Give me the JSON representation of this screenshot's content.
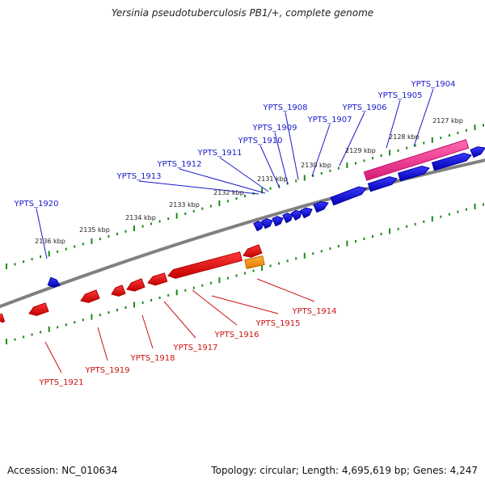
{
  "title": "Yersinia pseudotuberculosis PB1/+, complete genome",
  "footer": {
    "accession": "Accession: NC_010634",
    "summary": "Topology: circular; Length: 4,695,619 bp; Genes: 4,247"
  },
  "colors": {
    "forward_gene": "#0000dd",
    "reverse_gene": "#ee0000",
    "highlight_forward": "#ee2a8a",
    "highlight_reverse": "#f5900a",
    "backbone": "#888888",
    "ticks": "#1a8a1a",
    "forward_label": "#1a1acc",
    "reverse_label": "#cc1111"
  },
  "tick_labels": [
    "2127 kbp",
    "2128 kbp",
    "2129 kbp",
    "2130 kbp",
    "2131 kbp",
    "2132 kbp",
    "2133 kbp",
    "2134 kbp",
    "2135 kbp",
    "2136 kbp"
  ],
  "forward_genes": [
    "YPTS_1904",
    "YPTS_1905",
    "YPTS_1906",
    "YPTS_1907",
    "YPTS_1908",
    "YPTS_1909",
    "YPTS_1910",
    "YPTS_1911",
    "YPTS_1912",
    "YPTS_1913",
    "YPTS_1920"
  ],
  "reverse_genes": [
    "YPTS_1914",
    "YPTS_1915",
    "YPTS_1916",
    "YPTS_1917",
    "YPTS_1918",
    "YPTS_1919",
    "YPTS_1921"
  ]
}
